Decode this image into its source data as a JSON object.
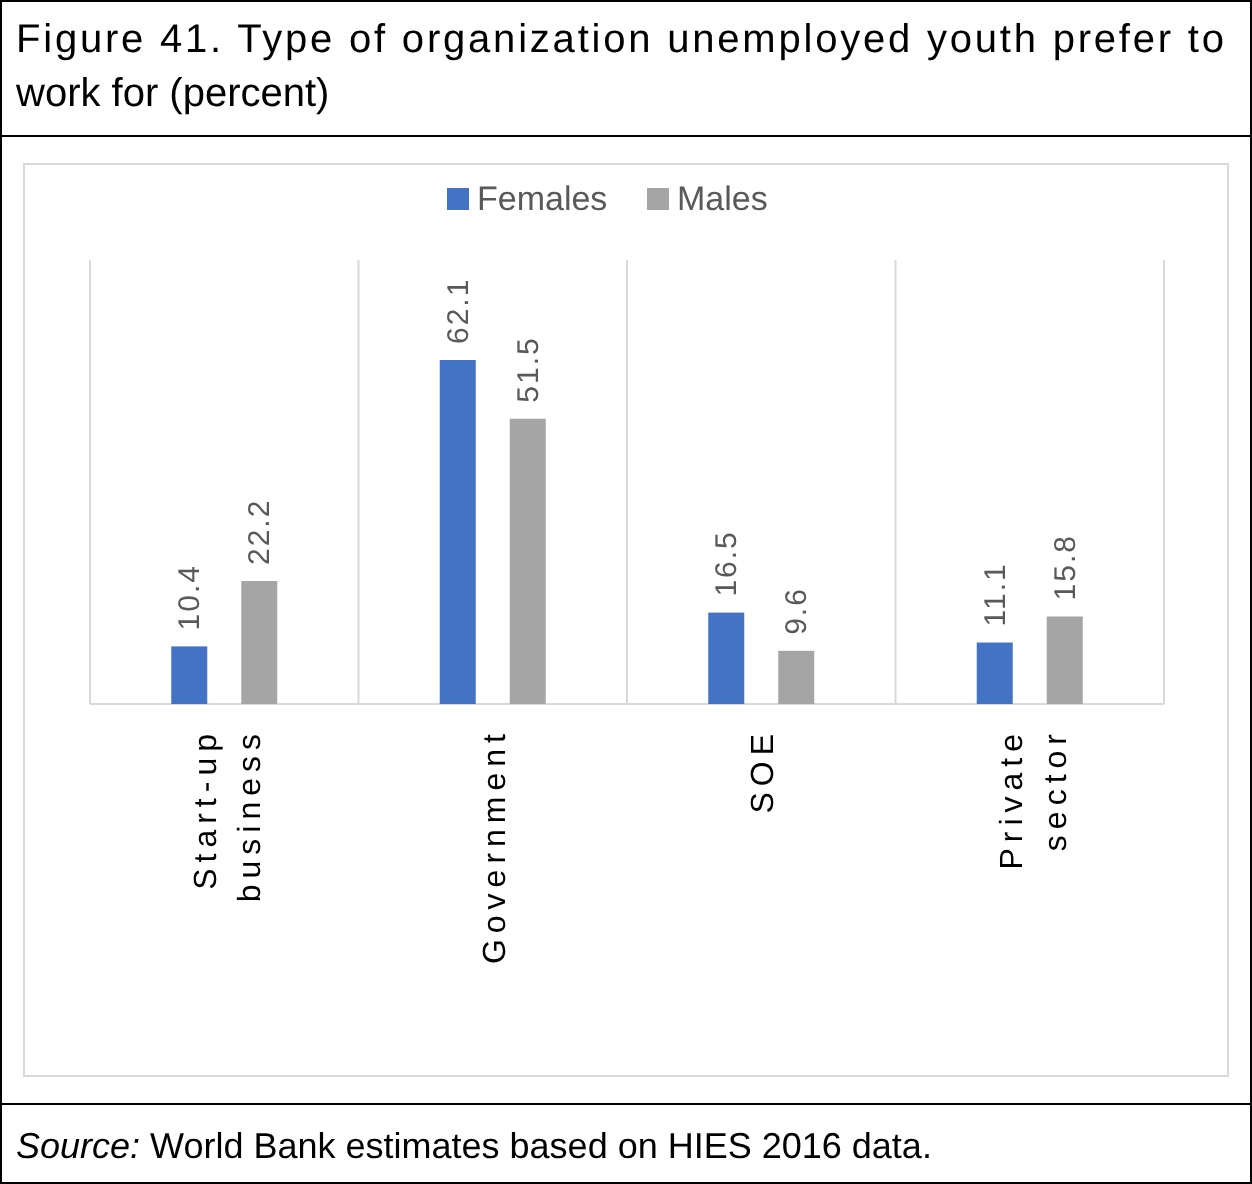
{
  "chart_data": {
    "type": "bar",
    "title": "Figure 41. Type of organization unemployed youth prefer to work for (percent)",
    "categories": [
      "Start-up business",
      "Government",
      "SOE",
      "Private sector"
    ],
    "series": [
      {
        "name": "Females",
        "color": "#4472c4",
        "values": [
          10.4,
          62.1,
          16.5,
          11.1
        ]
      },
      {
        "name": "Males",
        "color": "#a5a5a5",
        "values": [
          22.2,
          51.5,
          9.6,
          15.8
        ]
      }
    ],
    "data_labels": true,
    "grid": "x",
    "legend": "top",
    "annotations": [
      "Source: World Bank estimates based on HIES 2016 data."
    ]
  }
}
